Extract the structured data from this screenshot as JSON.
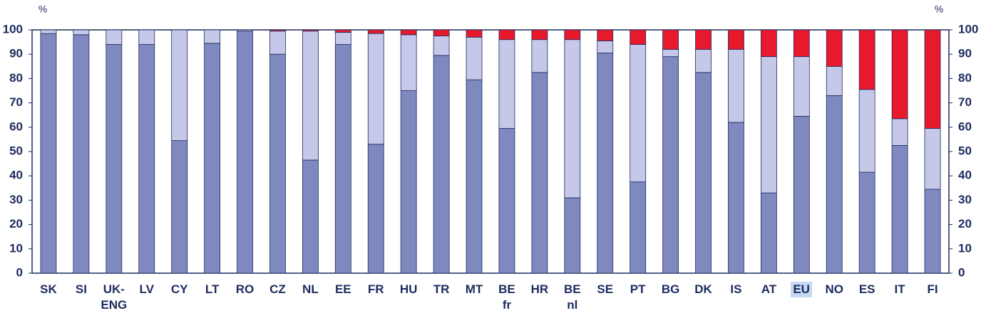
{
  "chart_data": {
    "type": "stacked_bar",
    "ylabel": "%",
    "y2label": "%",
    "categories": [
      "SK",
      "SI",
      "UK-\nENG",
      "LV",
      "CY",
      "LT",
      "RO",
      "CZ",
      "NL",
      "EE",
      "FR",
      "HU",
      "TR",
      "MT",
      "BE\nfr",
      "HR",
      "BE\nnl",
      "SE",
      "PT",
      "BG",
      "DK",
      "IS",
      "AT",
      "EU",
      "NO",
      "ES",
      "IT",
      "FI"
    ],
    "series": [
      {
        "color": "#8088c0",
        "values": [
          98.5,
          98,
          94,
          94,
          54.5,
          94.5,
          99.5,
          90,
          46.5,
          94,
          53,
          75,
          89.5,
          79.5,
          59.5,
          82.5,
          31,
          90.5,
          37.5,
          89,
          82.5,
          62,
          33,
          64.5,
          73,
          41.5,
          52.5,
          34.5
        ]
      },
      {
        "color": "#c5c8e8",
        "values": [
          1.5,
          2,
          6,
          6,
          45.5,
          5.5,
          0.5,
          9.5,
          53,
          5,
          45.5,
          23,
          8,
          17.5,
          36.5,
          13.5,
          65,
          5,
          56.5,
          3,
          9.5,
          30,
          56,
          24.5,
          12,
          34,
          11,
          25
        ]
      },
      {
        "color": "#e8192c",
        "values": [
          0,
          0,
          0,
          0,
          0,
          0,
          0,
          0.5,
          0.5,
          1,
          1.5,
          2,
          2.5,
          3,
          4,
          4,
          4,
          4.5,
          6,
          8,
          8,
          8,
          11,
          11,
          15,
          24.5,
          36.5,
          40.5
        ]
      }
    ],
    "highlight_category": "EU",
    "highlight_color": "#c5d9f1",
    "ylim": [
      0,
      100
    ],
    "yticks": [
      0,
      10,
      20,
      30,
      40,
      50,
      60,
      70,
      80,
      90,
      100
    ],
    "y2lim": [
      0,
      100
    ],
    "y2ticks": [
      0,
      10,
      20,
      30,
      40,
      50,
      60,
      70,
      80,
      90,
      100
    ]
  }
}
